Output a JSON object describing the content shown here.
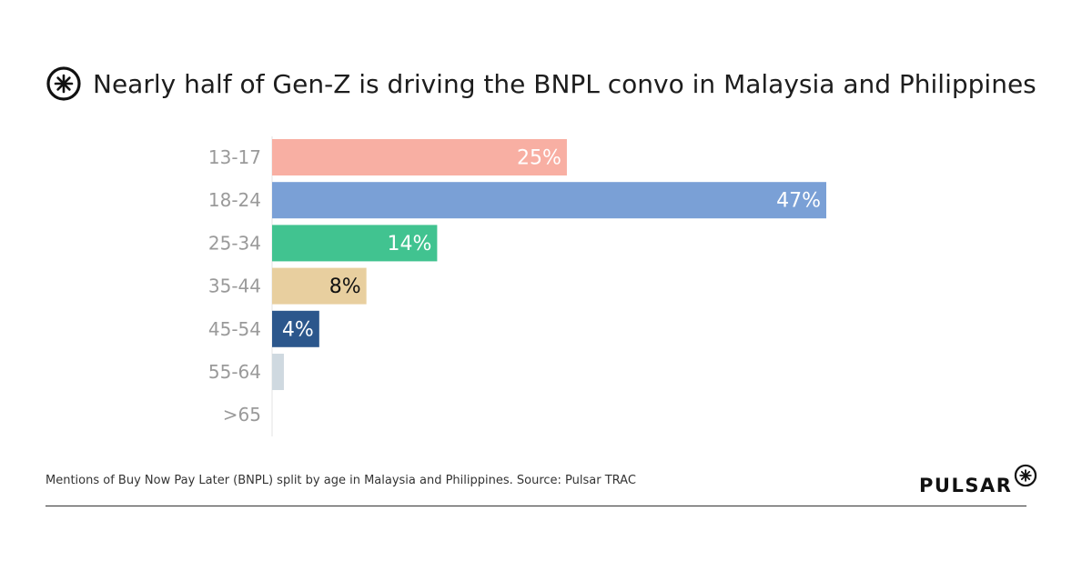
{
  "title": "Nearly half of Gen-Z is driving the BNPL convo in Malaysia and Philippines",
  "logo_icon": "asterisk-circle-icon",
  "footer_note": "Mentions of Buy Now Pay Later (BNPL) split by age in Malaysia and Philippines. Source: Pulsar TRAC",
  "brand": "PULSAR",
  "chart_data": {
    "type": "bar",
    "orientation": "horizontal",
    "categories": [
      "13-17",
      "18-24",
      "25-34",
      "35-44",
      "45-54",
      "55-64",
      ">65"
    ],
    "values": [
      25,
      47,
      14,
      8,
      4,
      1,
      0
    ],
    "value_labels": [
      "25%",
      "47%",
      "14%",
      "8%",
      "4%",
      "",
      ""
    ],
    "colors": [
      "#f8afa3",
      "#7aa0d6",
      "#41c390",
      "#e8cf9f",
      "#2c578c",
      "#cfd9e0",
      "#cfd9e0"
    ],
    "label_colors": [
      "#ffffff",
      "#ffffff",
      "#ffffff",
      "#111111",
      "#ffffff",
      "#ffffff",
      "#ffffff"
    ],
    "xlim": [
      0,
      47
    ],
    "grid": false,
    "legend": "none"
  }
}
